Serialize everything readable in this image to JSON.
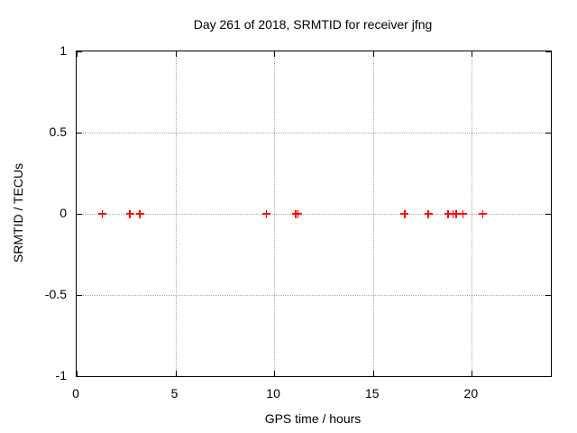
{
  "chart_data": {
    "type": "scatter",
    "title": "Day 261 of 2018, SRMTID for receiver jfng",
    "xlabel": "GPS time / hours",
    "ylabel": "SRMTID / TECUs",
    "xlim": [
      0,
      24
    ],
    "ylim": [
      -1,
      1
    ],
    "x_ticks": [
      {
        "value": 0,
        "label": "0"
      },
      {
        "value": 5,
        "label": "5"
      },
      {
        "value": 10,
        "label": "10"
      },
      {
        "value": 15,
        "label": "15"
      },
      {
        "value": 20,
        "label": "20"
      }
    ],
    "y_ticks": [
      {
        "value": 1,
        "label": "1"
      },
      {
        "value": 0.5,
        "label": "0.5"
      },
      {
        "value": 0,
        "label": "0"
      },
      {
        "value": -0.5,
        "label": "-0.5"
      },
      {
        "value": -1,
        "label": "-1"
      }
    ],
    "grid": true,
    "legend_position": "none",
    "marker": "plus",
    "series": [
      {
        "name": "SRMTID",
        "color": "#ff0000",
        "x": [
          1.3,
          2.7,
          3.2,
          9.6,
          11.1,
          11.2,
          16.6,
          17.8,
          18.8,
          19.05,
          19.2,
          19.55,
          20.55
        ],
        "y": [
          0,
          0,
          0,
          0,
          0,
          0,
          0,
          0,
          0,
          0,
          0,
          0,
          0
        ]
      }
    ]
  },
  "colors": {
    "marker": "#ff0000",
    "grid": "#a8a8a8",
    "axis": "#000000",
    "text": "#000000",
    "background": "#ffffff"
  }
}
